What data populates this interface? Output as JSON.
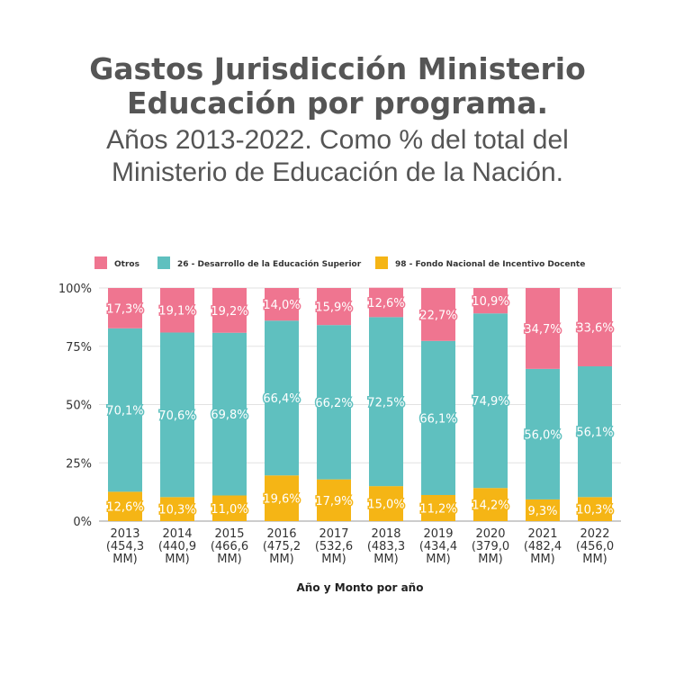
{
  "header": {
    "title_line1": "Gastos Jurisdicción Ministerio",
    "title_line2": "Educación por programa.",
    "subtitle_line1": "Años 2013-2022. Como % del total del",
    "subtitle_line2": "Ministerio de Educación de la Nación."
  },
  "chart_data": {
    "type": "bar",
    "stacked": true,
    "xlabel": "Año y Monto por año",
    "ylabel": "",
    "ylim": [
      0,
      100
    ],
    "yticks": [
      "0%",
      "25%",
      "50%",
      "75%",
      "100%"
    ],
    "legend_position": "top",
    "categories": [
      {
        "year": "2013",
        "amount": "(454,3",
        "unit": "MM)"
      },
      {
        "year": "2014",
        "amount": "(440,9",
        "unit": "MM)"
      },
      {
        "year": "2015",
        "amount": "(466,6",
        "unit": "MM)"
      },
      {
        "year": "2016",
        "amount": "(475,2",
        "unit": "MM)"
      },
      {
        "year": "2017",
        "amount": "(532,6",
        "unit": "MM)"
      },
      {
        "year": "2018",
        "amount": "(483,3",
        "unit": "MM)"
      },
      {
        "year": "2019",
        "amount": "(434,4",
        "unit": "MM)"
      },
      {
        "year": "2020",
        "amount": "(379,0",
        "unit": "MM)"
      },
      {
        "year": "2021",
        "amount": "(482,4",
        "unit": "MM)"
      },
      {
        "year": "2022",
        "amount": "(456,0",
        "unit": "MM)"
      }
    ],
    "series": [
      {
        "name": "98 - Fondo Nacional de Incentivo Docente",
        "color": "#f5b515",
        "values": [
          12.6,
          10.3,
          11.0,
          19.6,
          17.9,
          15.0,
          11.2,
          14.2,
          9.3,
          10.3
        ],
        "labels": [
          "12,6%",
          "10,3%",
          "11,0%",
          "19,6%",
          "17,9%",
          "15,0%",
          "11,2%",
          "14,2%",
          "9,3%",
          "10,3%"
        ]
      },
      {
        "name": "26 - Desarrollo de la Educación Superior",
        "color": "#5fc0bf",
        "values": [
          70.1,
          70.6,
          69.8,
          66.4,
          66.2,
          72.5,
          66.1,
          74.9,
          56.0,
          56.1
        ],
        "labels": [
          "70,1%",
          "70,6%",
          "69,8%",
          "66,4%",
          "66,2%",
          "72,5%",
          "66,1%",
          "74,9%",
          "56,0%",
          "56,1%"
        ]
      },
      {
        "name": "Otros",
        "color": "#ef7590",
        "values": [
          17.3,
          19.1,
          19.2,
          14.0,
          15.9,
          12.6,
          22.7,
          10.9,
          34.7,
          33.6
        ],
        "labels": [
          "17,3%",
          "19,1%",
          "19,2%",
          "14,0%",
          "15,9%",
          "12,6%",
          "22,7%",
          "10,9%",
          "34,7%",
          "33,6%"
        ]
      }
    ],
    "legend_order": [
      2,
      1,
      0
    ]
  }
}
